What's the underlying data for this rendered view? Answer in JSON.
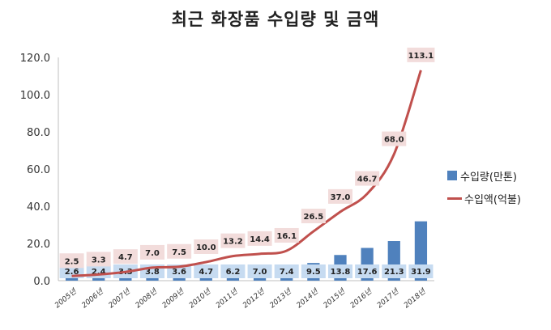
{
  "chart_data": {
    "type": "bar+line",
    "title": "최근 화장품 수입량 및 금액",
    "categories": [
      "2005년",
      "2006년",
      "2007년",
      "2008년",
      "2009년",
      "2010년",
      "2011년",
      "2012년",
      "2013년",
      "2014년",
      "2015년",
      "2016년",
      "2017년",
      "2018년"
    ],
    "ylim": [
      0,
      120
    ],
    "yticks": [
      "0.0",
      "20.0",
      "40.0",
      "60.0",
      "80.0",
      "100.0",
      "120.0"
    ],
    "grid": false,
    "legend_position": "right",
    "series": [
      {
        "name": "수입량(만톤)",
        "type": "bar",
        "color": "#4F81BD",
        "values": [
          2.6,
          2.4,
          3.3,
          3.8,
          3.6,
          4.7,
          6.2,
          7.0,
          7.4,
          9.5,
          13.8,
          17.6,
          21.3,
          31.9
        ],
        "labels": [
          "2.6",
          "2.4",
          "3.3",
          "3.8",
          "3.6",
          "4.7",
          "6.2",
          "7.0",
          "7.4",
          "9.5",
          "13.8",
          "17.6",
          "21.3",
          "31.9"
        ]
      },
      {
        "name": "수입액(억불)",
        "type": "line",
        "color": "#C0504D",
        "values": [
          2.5,
          3.3,
          4.7,
          7.0,
          7.5,
          10.0,
          13.2,
          14.4,
          16.1,
          26.5,
          37.0,
          46.7,
          68.0,
          113.1
        ],
        "labels": [
          "2.5",
          "3.3",
          "4.7",
          "7.0",
          "7.5",
          "10.0",
          "13.2",
          "14.4",
          "16.1",
          "26.5",
          "37.0",
          "46.7",
          "68.0",
          "113.1"
        ]
      }
    ]
  }
}
